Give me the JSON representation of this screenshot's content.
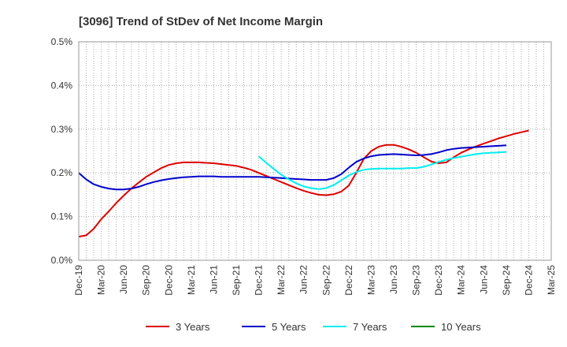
{
  "chart_data": {
    "type": "line",
    "title": "[3096]  Trend of StDev of Net Income Margin",
    "xlabel": "",
    "ylabel": "",
    "x_ticks": [
      "Dec-19",
      "Mar-20",
      "Jun-20",
      "Sep-20",
      "Dec-20",
      "Mar-21",
      "Jun-21",
      "Sep-21",
      "Dec-21",
      "Mar-22",
      "Jun-22",
      "Sep-22",
      "Dec-22",
      "Mar-23",
      "Jun-23",
      "Sep-23",
      "Dec-23",
      "Mar-24",
      "Jun-24",
      "Sep-24",
      "Dec-24",
      "Mar-25"
    ],
    "y_ticks": [
      "0.0%",
      "0.1%",
      "0.2%",
      "0.3%",
      "0.4%",
      "0.5%"
    ],
    "ylim": [
      0,
      0.5
    ],
    "y_unit": "%",
    "grid": true,
    "legend_position": "bottom",
    "series": [
      {
        "name": "3 Years",
        "color": "#dd0000",
        "points": [
          [
            "Dec-19",
            0.054
          ],
          [
            "Jan-20",
            0.057
          ],
          [
            "Feb-20",
            0.072
          ],
          [
            "Mar-20",
            0.094
          ],
          [
            "Apr-20",
            0.112
          ],
          [
            "May-20",
            0.131
          ],
          [
            "Jun-20",
            0.148
          ],
          [
            "Jul-20",
            0.164
          ],
          [
            "Aug-20",
            0.178
          ],
          [
            "Sep-20",
            0.191
          ],
          [
            "Oct-20",
            0.201
          ],
          [
            "Nov-20",
            0.211
          ],
          [
            "Dec-20",
            0.218
          ],
          [
            "Jan-21",
            0.222
          ],
          [
            "Feb-21",
            0.224
          ],
          [
            "Mar-21",
            0.224
          ],
          [
            "Apr-21",
            0.224
          ],
          [
            "May-21",
            0.223
          ],
          [
            "Jun-21",
            0.222
          ],
          [
            "Jul-21",
            0.22
          ],
          [
            "Aug-21",
            0.218
          ],
          [
            "Sep-21",
            0.216
          ],
          [
            "Oct-21",
            0.212
          ],
          [
            "Nov-21",
            0.207
          ],
          [
            "Dec-21",
            0.2
          ],
          [
            "Jan-22",
            0.193
          ],
          [
            "Feb-22",
            0.186
          ],
          [
            "Mar-22",
            0.179
          ],
          [
            "Apr-22",
            0.172
          ],
          [
            "May-22",
            0.165
          ],
          [
            "Jun-22",
            0.159
          ],
          [
            "Jul-22",
            0.154
          ],
          [
            "Aug-22",
            0.15
          ],
          [
            "Sep-22",
            0.149
          ],
          [
            "Oct-22",
            0.151
          ],
          [
            "Nov-22",
            0.157
          ],
          [
            "Dec-22",
            0.171
          ],
          [
            "Jan-23",
            0.2
          ],
          [
            "Feb-23",
            0.232
          ],
          [
            "Mar-23",
            0.25
          ],
          [
            "Apr-23",
            0.26
          ],
          [
            "May-23",
            0.264
          ],
          [
            "Jun-23",
            0.264
          ],
          [
            "Jul-23",
            0.26
          ],
          [
            "Aug-23",
            0.254
          ],
          [
            "Sep-23",
            0.246
          ],
          [
            "Oct-23",
            0.236
          ],
          [
            "Nov-23",
            0.226
          ],
          [
            "Dec-23",
            0.222
          ],
          [
            "Jan-24",
            0.224
          ],
          [
            "Feb-24",
            0.236
          ],
          [
            "Mar-24",
            0.246
          ],
          [
            "Apr-24",
            0.254
          ],
          [
            "May-24",
            0.261
          ],
          [
            "Jun-24",
            0.267
          ],
          [
            "Jul-24",
            0.273
          ],
          [
            "Aug-24",
            0.279
          ],
          [
            "Sep-24",
            0.284
          ],
          [
            "Oct-24",
            0.289
          ],
          [
            "Nov-24",
            0.293
          ],
          [
            "Dec-24",
            0.297
          ]
        ]
      },
      {
        "name": "5 Years",
        "color": "#0000cc",
        "points": [
          [
            "Dec-19",
            0.2
          ],
          [
            "Jan-20",
            0.185
          ],
          [
            "Feb-20",
            0.174
          ],
          [
            "Mar-20",
            0.168
          ],
          [
            "Apr-20",
            0.164
          ],
          [
            "May-20",
            0.162
          ],
          [
            "Jun-20",
            0.162
          ],
          [
            "Jul-20",
            0.164
          ],
          [
            "Aug-20",
            0.168
          ],
          [
            "Sep-20",
            0.174
          ],
          [
            "Oct-20",
            0.179
          ],
          [
            "Nov-20",
            0.183
          ],
          [
            "Dec-20",
            0.186
          ],
          [
            "Jan-21",
            0.188
          ],
          [
            "Feb-21",
            0.19
          ],
          [
            "Mar-21",
            0.191
          ],
          [
            "Apr-21",
            0.192
          ],
          [
            "May-21",
            0.192
          ],
          [
            "Jun-21",
            0.192
          ],
          [
            "Jul-21",
            0.191
          ],
          [
            "Aug-21",
            0.191
          ],
          [
            "Sep-21",
            0.191
          ],
          [
            "Oct-21",
            0.191
          ],
          [
            "Nov-21",
            0.191
          ],
          [
            "Dec-21",
            0.191
          ],
          [
            "Jan-22",
            0.19
          ],
          [
            "Feb-22",
            0.189
          ],
          [
            "Mar-22",
            0.188
          ],
          [
            "Apr-22",
            0.187
          ],
          [
            "May-22",
            0.186
          ],
          [
            "Jun-22",
            0.185
          ],
          [
            "Jul-22",
            0.184
          ],
          [
            "Aug-22",
            0.184
          ],
          [
            "Sep-22",
            0.184
          ],
          [
            "Oct-22",
            0.188
          ],
          [
            "Nov-22",
            0.197
          ],
          [
            "Dec-22",
            0.212
          ],
          [
            "Jan-23",
            0.225
          ],
          [
            "Feb-23",
            0.233
          ],
          [
            "Mar-23",
            0.238
          ],
          [
            "Apr-23",
            0.241
          ],
          [
            "May-23",
            0.242
          ],
          [
            "Jun-23",
            0.243
          ],
          [
            "Jul-23",
            0.242
          ],
          [
            "Aug-23",
            0.241
          ],
          [
            "Sep-23",
            0.24
          ],
          [
            "Oct-23",
            0.241
          ],
          [
            "Nov-23",
            0.243
          ],
          [
            "Dec-23",
            0.247
          ],
          [
            "Jan-24",
            0.252
          ],
          [
            "Feb-24",
            0.255
          ],
          [
            "Mar-24",
            0.257
          ],
          [
            "Apr-24",
            0.258
          ],
          [
            "May-24",
            0.259
          ],
          [
            "Jun-24",
            0.26
          ],
          [
            "Jul-24",
            0.261
          ],
          [
            "Aug-24",
            0.262
          ],
          [
            "Sep-24",
            0.263
          ]
        ]
      },
      {
        "name": "7 Years",
        "color": "#00eeee",
        "points": [
          [
            "Dec-21",
            0.238
          ],
          [
            "Jan-22",
            0.223
          ],
          [
            "Feb-22",
            0.209
          ],
          [
            "Mar-22",
            0.196
          ],
          [
            "Apr-22",
            0.185
          ],
          [
            "May-22",
            0.176
          ],
          [
            "Jun-22",
            0.169
          ],
          [
            "Jul-22",
            0.165
          ],
          [
            "Aug-22",
            0.163
          ],
          [
            "Sep-22",
            0.165
          ],
          [
            "Oct-22",
            0.172
          ],
          [
            "Nov-22",
            0.183
          ],
          [
            "Dec-22",
            0.194
          ],
          [
            "Jan-23",
            0.202
          ],
          [
            "Feb-23",
            0.207
          ],
          [
            "Mar-23",
            0.209
          ],
          [
            "Apr-23",
            0.21
          ],
          [
            "May-23",
            0.21
          ],
          [
            "Jun-23",
            0.21
          ],
          [
            "Jul-23",
            0.21
          ],
          [
            "Aug-23",
            0.211
          ],
          [
            "Sep-23",
            0.211
          ],
          [
            "Oct-23",
            0.214
          ],
          [
            "Nov-23",
            0.219
          ],
          [
            "Dec-23",
            0.225
          ],
          [
            "Jan-24",
            0.23
          ],
          [
            "Feb-24",
            0.234
          ],
          [
            "Mar-24",
            0.237
          ],
          [
            "Apr-24",
            0.24
          ],
          [
            "May-24",
            0.243
          ],
          [
            "Jun-24",
            0.245
          ],
          [
            "Jul-24",
            0.246
          ],
          [
            "Aug-24",
            0.247
          ],
          [
            "Sep-24",
            0.248
          ]
        ]
      },
      {
        "name": "10 Years",
        "color": "#008800",
        "points": []
      }
    ]
  }
}
